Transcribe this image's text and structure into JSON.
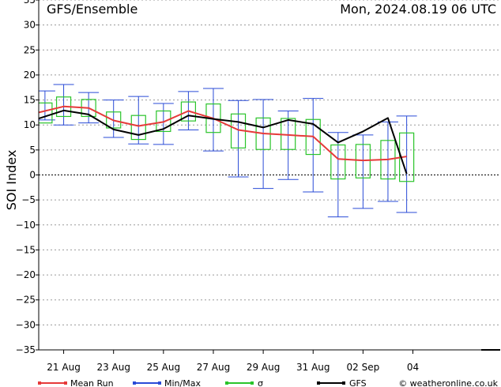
{
  "header": {
    "title": "GFS/Ensemble",
    "run_info": "Mon, 2024.08.19   06 UTC"
  },
  "chart_data": {
    "type": "line",
    "ylabel": "SOI Index",
    "ylim": [
      -35,
      35
    ],
    "ystep": 5,
    "xlim": [
      0,
      18.5
    ],
    "x_tick_labels": [
      {
        "x": 1,
        "label": "21 Aug"
      },
      {
        "x": 3,
        "label": "23 Aug"
      },
      {
        "x": 5,
        "label": "25 Aug"
      },
      {
        "x": 7,
        "label": "27 Aug"
      },
      {
        "x": 9,
        "label": "29 Aug"
      },
      {
        "x": 11,
        "label": "31 Aug"
      },
      {
        "x": 13,
        "label": "02 Sep"
      },
      {
        "x": 15,
        "label": "04"
      }
    ],
    "zero_line": 0,
    "grid": "horizontal dashed",
    "series": [
      {
        "name": "Mean Run",
        "color": "#e63a3a",
        "x": [
          0,
          1,
          2,
          3,
          4,
          5,
          6,
          7,
          8,
          9,
          10,
          11,
          12,
          13,
          14,
          14.75
        ],
        "values": [
          12.5,
          13.7,
          13.4,
          10.9,
          9.8,
          10.6,
          12.8,
          11.3,
          9.0,
          8.3,
          8.0,
          7.7,
          3.2,
          2.9,
          3.1,
          3.7
        ]
      },
      {
        "name": "GFS",
        "color": "#000000",
        "x": [
          0,
          1,
          2,
          3,
          4,
          5,
          6,
          7,
          8,
          9,
          10,
          11,
          12,
          13,
          14,
          14.75
        ],
        "values": [
          11.3,
          12.9,
          12.1,
          9.1,
          8.0,
          9.2,
          11.9,
          11.2,
          10.6,
          9.5,
          11.0,
          10.2,
          6.5,
          8.7,
          11.4,
          0.2
        ]
      }
    ],
    "min_max": {
      "name": "Min/Max",
      "color": "#2a4bd7",
      "x": [
        0.25,
        1,
        2,
        3,
        4,
        5,
        6,
        7,
        8,
        9,
        10,
        11,
        12,
        13,
        14,
        14.75
      ],
      "min": [
        11.0,
        10.0,
        10.4,
        7.5,
        6.2,
        6.1,
        9.0,
        4.8,
        -0.4,
        -2.7,
        -0.9,
        -3.4,
        -8.4,
        -6.7,
        -5.3,
        -7.5
      ],
      "max": [
        16.8,
        18.1,
        16.5,
        15.0,
        15.7,
        14.3,
        16.7,
        17.3,
        14.9,
        15.1,
        12.8,
        15.3,
        8.5,
        8.0,
        10.6,
        11.8
      ]
    },
    "sigma": {
      "name": "σ",
      "color": "#2ac42a",
      "x": [
        0.25,
        1,
        2,
        3,
        4,
        5,
        6,
        7,
        8,
        9,
        10,
        11,
        12,
        13,
        14,
        14.75
      ],
      "low": [
        10.4,
        11.7,
        11.7,
        9.4,
        7.1,
        8.7,
        10.8,
        8.5,
        5.4,
        5.1,
        5.1,
        4.1,
        -0.8,
        -0.6,
        -0.8,
        -1.3
      ],
      "high": [
        14.4,
        15.6,
        15.1,
        12.6,
        11.9,
        12.8,
        14.6,
        14.2,
        12.2,
        11.4,
        11.3,
        11.1,
        6.0,
        6.1,
        6.9,
        8.4
      ]
    }
  },
  "legend": {
    "mean_run": "Mean Run",
    "min_max": "Min/Max",
    "sigma": "σ",
    "gfs": "GFS"
  },
  "footer": {
    "credit": "© weatheronline.co.uk"
  }
}
